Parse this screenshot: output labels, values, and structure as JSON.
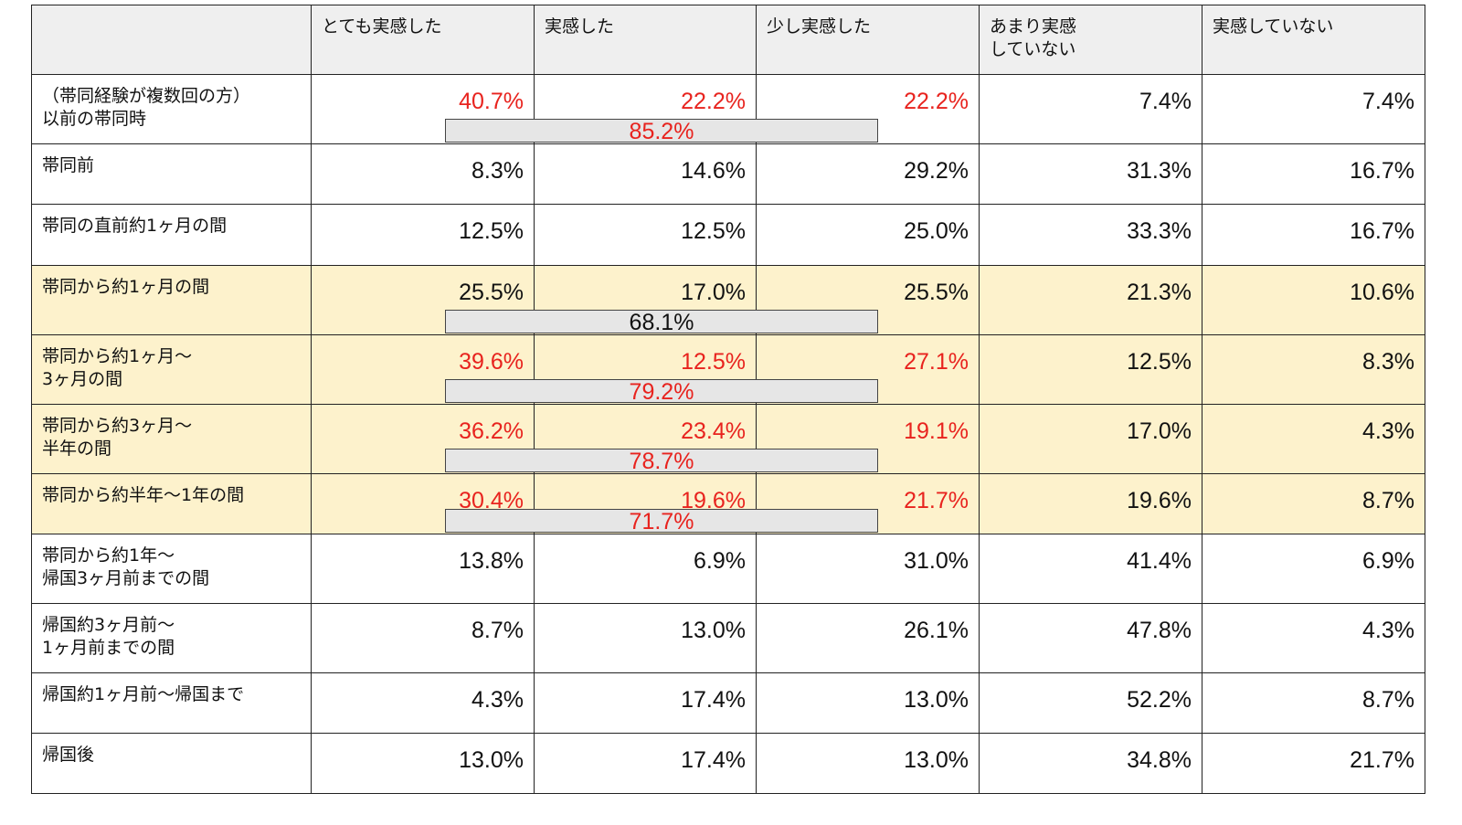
{
  "headers": [
    "",
    "とても実感した",
    "実感した",
    "少し実感した",
    "あまり実感\nしていない",
    "実感していない"
  ],
  "chart_data": {
    "type": "table",
    "columns": [
      "とても実感した",
      "実感した",
      "少し実感した",
      "あまり実感\nしていない",
      "実感していない"
    ],
    "rows": [
      {
        "label": "（帯同経験が複数回の方）\n以前の帯同時",
        "values": [
          "40.7%",
          "22.2%",
          "22.2%",
          "7.4%",
          "7.4%"
        ],
        "red_cols": [
          0,
          1,
          2
        ],
        "highlight": false,
        "merged_total": "85.2%",
        "merged_color": "red"
      },
      {
        "label": "帯同前",
        "values": [
          "8.3%",
          "14.6%",
          "29.2%",
          "31.3%",
          "16.7%"
        ],
        "red_cols": [],
        "highlight": false
      },
      {
        "label": "帯同の直前約1ヶ月の間",
        "values": [
          "12.5%",
          "12.5%",
          "25.0%",
          "33.3%",
          "16.7%"
        ],
        "red_cols": [],
        "highlight": false
      },
      {
        "label": "帯同から約1ヶ月の間",
        "values": [
          "25.5%",
          "17.0%",
          "25.5%",
          "21.3%",
          "10.6%"
        ],
        "red_cols": [],
        "highlight": true,
        "merged_total": "68.1%",
        "merged_color": "black"
      },
      {
        "label": "帯同から約1ヶ月〜\n3ヶ月の間",
        "values": [
          "39.6%",
          "12.5%",
          "27.1%",
          "12.5%",
          "8.3%"
        ],
        "red_cols": [
          0,
          1,
          2
        ],
        "highlight": true,
        "merged_total": "79.2%",
        "merged_color": "red"
      },
      {
        "label": "帯同から約3ヶ月〜\n半年の間",
        "values": [
          "36.2%",
          "23.4%",
          "19.1%",
          "17.0%",
          "4.3%"
        ],
        "red_cols": [
          0,
          1,
          2
        ],
        "highlight": true,
        "merged_total": "78.7%",
        "merged_color": "red"
      },
      {
        "label": "帯同から約半年〜1年の間",
        "values": [
          "30.4%",
          "19.6%",
          "21.7%",
          "19.6%",
          "8.7%"
        ],
        "red_cols": [
          0,
          1,
          2
        ],
        "highlight": true,
        "merged_total": "71.7%",
        "merged_color": "red"
      },
      {
        "label": "帯同から約1年〜\n帰国3ヶ月前までの間",
        "values": [
          "13.8%",
          "6.9%",
          "31.0%",
          "41.4%",
          "6.9%"
        ],
        "red_cols": [],
        "highlight": false
      },
      {
        "label": "帰国約3ヶ月前〜\n1ヶ月前までの間",
        "values": [
          "8.7%",
          "13.0%",
          "26.1%",
          "47.8%",
          "4.3%"
        ],
        "red_cols": [],
        "highlight": false
      },
      {
        "label": "帰国約1ヶ月前〜帰国まで",
        "values": [
          "4.3%",
          "17.4%",
          "13.0%",
          "52.2%",
          "8.7%"
        ],
        "red_cols": [],
        "highlight": false
      },
      {
        "label": "帰国後",
        "values": [
          "13.0%",
          "17.4%",
          "13.0%",
          "34.8%",
          "21.7%"
        ],
        "red_cols": [],
        "highlight": false
      }
    ]
  },
  "colors": {
    "red": "#e8231e",
    "highlight": "#fdf2cc",
    "header_bg": "#efefef",
    "bar_bg": "#e6e6e6"
  }
}
